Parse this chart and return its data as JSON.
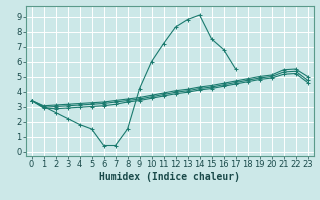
{
  "title": "",
  "xlabel": "Humidex (Indice chaleur)",
  "bg_color": "#cce8e8",
  "grid_color": "#ffffff",
  "line_color": "#1a7a6e",
  "xlim": [
    -0.5,
    23.5
  ],
  "ylim": [
    -0.3,
    9.7
  ],
  "xticks": [
    0,
    1,
    2,
    3,
    4,
    5,
    6,
    7,
    8,
    9,
    10,
    11,
    12,
    13,
    14,
    15,
    16,
    17,
    18,
    19,
    20,
    21,
    22,
    23
  ],
  "yticks": [
    0,
    1,
    2,
    3,
    4,
    5,
    6,
    7,
    8,
    9
  ],
  "curve_x": [
    0,
    1,
    2,
    3,
    4,
    5,
    6,
    7,
    8,
    9,
    10,
    11,
    12,
    13,
    14,
    15,
    16,
    17
  ],
  "curve_y": [
    3.4,
    3.0,
    2.6,
    2.2,
    1.8,
    1.5,
    0.4,
    0.4,
    1.5,
    4.2,
    6.0,
    7.2,
    8.3,
    8.8,
    9.1,
    7.5,
    6.8,
    5.5
  ],
  "line_upper_x": [
    0,
    1,
    2,
    3,
    4,
    5,
    6,
    7,
    8,
    9,
    10,
    11,
    12,
    13,
    14,
    15,
    16,
    17,
    18,
    19,
    20,
    21,
    22,
    23
  ],
  "line_upper_y": [
    3.4,
    3.05,
    3.1,
    3.15,
    3.2,
    3.25,
    3.3,
    3.4,
    3.5,
    3.6,
    3.75,
    3.9,
    4.05,
    4.15,
    4.3,
    4.4,
    4.55,
    4.7,
    4.85,
    5.0,
    5.1,
    5.45,
    5.5,
    5.0
  ],
  "line_mid_x": [
    0,
    1,
    2,
    3,
    4,
    5,
    6,
    7,
    8,
    9,
    10,
    11,
    12,
    13,
    14,
    15,
    16,
    17,
    18,
    19,
    20,
    21,
    22,
    23
  ],
  "line_mid_y": [
    3.4,
    2.95,
    3.0,
    3.05,
    3.1,
    3.15,
    3.2,
    3.3,
    3.4,
    3.5,
    3.65,
    3.8,
    3.95,
    4.05,
    4.2,
    4.3,
    4.45,
    4.6,
    4.75,
    4.9,
    5.0,
    5.3,
    5.35,
    4.75
  ],
  "line_lower_x": [
    0,
    1,
    2,
    3,
    4,
    5,
    6,
    7,
    8,
    9,
    10,
    11,
    12,
    13,
    14,
    15,
    16,
    17,
    18,
    19,
    20,
    21,
    22,
    23
  ],
  "line_lower_y": [
    3.4,
    2.9,
    2.85,
    2.9,
    2.95,
    3.0,
    3.05,
    3.15,
    3.3,
    3.4,
    3.55,
    3.7,
    3.85,
    3.95,
    4.1,
    4.2,
    4.35,
    4.5,
    4.65,
    4.8,
    4.9,
    5.15,
    5.2,
    4.6
  ],
  "xlabel_fontsize": 7,
  "tick_fontsize": 6
}
